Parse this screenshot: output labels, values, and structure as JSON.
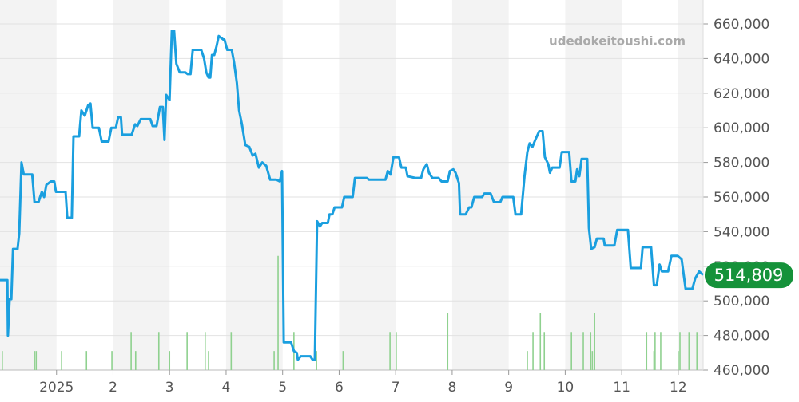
{
  "chart_data": {
    "type": "line",
    "watermark": "udedokeitoushi.com",
    "xlim": [
      0,
      12.44
    ],
    "xticks": [
      {
        "value": 1,
        "label": "2025"
      },
      2,
      3,
      4,
      5,
      6,
      7,
      8,
      9,
      10,
      11,
      12
    ],
    "ylim": [
      460000,
      660000
    ],
    "yticks": [
      {
        "value": 460000,
        "label": "460,000"
      },
      {
        "value": 480000,
        "label": "480,000"
      },
      {
        "value": 500000,
        "label": "500,000"
      },
      {
        "value": 520000,
        "label": "520,000"
      },
      {
        "value": 540000,
        "label": "540,000"
      },
      {
        "value": 560000,
        "label": "560,000"
      },
      {
        "value": 580000,
        "label": "580,000"
      },
      {
        "value": 600000,
        "label": "600,000"
      },
      {
        "value": 620000,
        "label": "620,000"
      },
      {
        "value": 640000,
        "label": "640,000"
      },
      {
        "value": 660000,
        "label": "660,000"
      }
    ],
    "grid": true,
    "x": [
      0.0,
      0.13,
      0.14,
      0.17,
      0.2,
      0.23,
      0.31,
      0.34,
      0.38,
      0.42,
      0.57,
      0.61,
      0.68,
      0.74,
      0.78,
      0.82,
      0.9,
      0.96,
      0.99,
      1.16,
      1.19,
      1.27,
      1.3,
      1.4,
      1.44,
      1.5,
      1.56,
      1.6,
      1.64,
      1.75,
      1.8,
      1.92,
      1.97,
      2.05,
      2.09,
      2.14,
      2.16,
      2.33,
      2.39,
      2.43,
      2.49,
      2.66,
      2.7,
      2.77,
      2.83,
      2.88,
      2.91,
      2.94,
      3.0,
      3.04,
      3.08,
      3.12,
      3.18,
      3.28,
      3.32,
      3.37,
      3.41,
      3.56,
      3.61,
      3.65,
      3.69,
      3.72,
      3.75,
      3.79,
      3.83,
      3.87,
      3.95,
      3.97,
      4.02,
      4.1,
      4.14,
      4.19,
      4.23,
      4.28,
      4.34,
      4.41,
      4.47,
      4.52,
      4.58,
      4.64,
      4.71,
      4.78,
      4.89,
      4.95,
      4.99,
      5.02,
      5.15,
      5.2,
      5.25,
      5.27,
      5.32,
      5.49,
      5.53,
      5.57,
      5.61,
      5.66,
      5.7,
      5.8,
      5.83,
      5.88,
      5.92,
      6.05,
      6.09,
      6.24,
      6.28,
      6.49,
      6.53,
      6.82,
      6.86,
      6.91,
      6.96,
      7.06,
      7.1,
      7.18,
      7.21,
      7.35,
      7.45,
      7.49,
      7.55,
      7.59,
      7.65,
      7.76,
      7.81,
      7.92,
      7.96,
      8.02,
      8.06,
      8.12,
      8.14,
      8.24,
      8.3,
      8.34,
      8.39,
      8.53,
      8.57,
      8.68,
      8.74,
      8.85,
      8.89,
      9.08,
      9.12,
      9.22,
      9.28,
      9.33,
      9.37,
      9.42,
      9.47,
      9.54,
      9.6,
      9.64,
      9.7,
      9.73,
      9.77,
      9.9,
      9.94,
      10.07,
      10.11,
      10.18,
      10.21,
      10.25,
      10.29,
      10.39,
      10.42,
      10.46,
      10.52,
      10.56,
      10.68,
      10.7,
      10.87,
      10.92,
      11.11,
      11.16,
      11.34,
      11.37,
      11.52,
      11.57,
      11.62,
      11.67,
      11.71,
      11.75,
      11.82,
      11.88,
      11.99,
      12.06,
      12.13,
      12.25,
      12.3,
      12.37,
      12.44
    ],
    "series": [
      {
        "color": "#1a9fdf",
        "values": [
          512000,
          512000,
          480000,
          501000,
          501000,
          530000,
          530000,
          539000,
          580000,
          573000,
          573000,
          557000,
          557000,
          563000,
          560000,
          567000,
          569000,
          569000,
          563000,
          563000,
          548000,
          548000,
          595000,
          595000,
          610000,
          607000,
          613000,
          614000,
          600000,
          600000,
          592000,
          592000,
          600000,
          600000,
          606000,
          606000,
          596000,
          596000,
          602000,
          601000,
          605000,
          605000,
          601000,
          601000,
          612000,
          612000,
          593000,
          619000,
          616000,
          656000,
          656000,
          637000,
          632000,
          632000,
          631000,
          631000,
          645000,
          645000,
          640000,
          632000,
          629000,
          629000,
          642000,
          642000,
          647000,
          653000,
          651000,
          651000,
          645000,
          645000,
          638000,
          626000,
          610000,
          602000,
          590000,
          589000,
          584000,
          585000,
          577000,
          580000,
          578000,
          570000,
          570000,
          569000,
          575000,
          476000,
          476000,
          471000,
          470000,
          466000,
          468000,
          468000,
          466000,
          466000,
          546000,
          543000,
          545000,
          545000,
          550000,
          550000,
          554000,
          554000,
          560000,
          560000,
          571000,
          571000,
          570000,
          570000,
          575000,
          573000,
          583000,
          583000,
          577000,
          577000,
          572000,
          571000,
          571000,
          576000,
          579000,
          574000,
          571000,
          571000,
          569000,
          569000,
          575000,
          576000,
          574000,
          568000,
          550000,
          550000,
          554000,
          554000,
          560000,
          560000,
          562000,
          562000,
          557000,
          557000,
          560000,
          560000,
          550000,
          550000,
          572000,
          586000,
          591000,
          589000,
          593000,
          598000,
          598000,
          583000,
          579000,
          574000,
          577000,
          577000,
          586000,
          586000,
          569000,
          569000,
          576000,
          572000,
          582000,
          582000,
          542000,
          530000,
          531000,
          536000,
          536000,
          532000,
          532000,
          541000,
          541000,
          519000,
          519000,
          531000,
          531000,
          509000,
          509000,
          521000,
          517000,
          517000,
          517000,
          526000,
          526000,
          524000,
          507000,
          507000,
          513000,
          517000,
          515000
        ]
      }
    ],
    "volume": {
      "color": "#8fd18f",
      "x": [
        0.04,
        0.61,
        0.64,
        1.09,
        1.53,
        1.98,
        2.32,
        2.4,
        2.81,
        3.0,
        3.31,
        3.63,
        3.69,
        4.09,
        4.85,
        4.92,
        5.2,
        5.6,
        6.07,
        6.9,
        7.01,
        7.92,
        9.33,
        9.43,
        9.56,
        9.63,
        10.11,
        10.32,
        10.45,
        10.48,
        10.52,
        11.44,
        11.57,
        11.59,
        11.69,
        12.0,
        12.03,
        12.19,
        12.33
      ],
      "values": [
        471000,
        471000,
        471000,
        471000,
        471000,
        471000,
        482000,
        471000,
        482000,
        471000,
        482000,
        482000,
        471000,
        482000,
        471000,
        526000,
        482000,
        471000,
        471000,
        482000,
        482000,
        493000,
        471000,
        482000,
        493000,
        482000,
        482000,
        482000,
        482000,
        471000,
        493000,
        482000,
        471000,
        482000,
        482000,
        471000,
        482000,
        482000,
        482000
      ]
    },
    "current": {
      "value": 514809,
      "label": "514,809",
      "color": "#15923a"
    }
  }
}
